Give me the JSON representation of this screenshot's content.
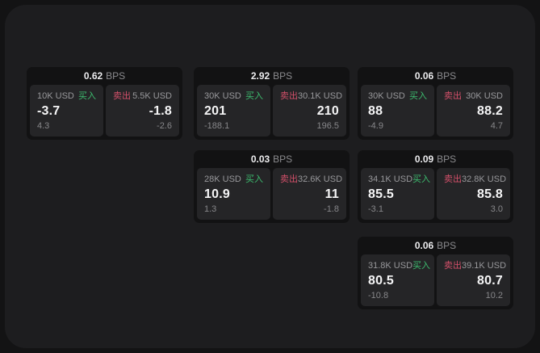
{
  "labels": {
    "bps": "BPS",
    "buy": "买入",
    "sell": "卖出"
  },
  "colors": {
    "buy_accent": "#3dbd6f",
    "sell_accent": "#d4506a",
    "panel_bg": "#1d1d1f",
    "card_bg": "#121213",
    "tile_bg": "#252527"
  },
  "cards": [
    {
      "col": 1,
      "row": 1,
      "bps": "0.62",
      "buy": {
        "amount": "10K USD",
        "value": "-3.7",
        "delta": "4.3"
      },
      "sell": {
        "amount": "5.5K USD",
        "value": "-1.8",
        "delta": "-2.6"
      }
    },
    {
      "col": 2,
      "row": 1,
      "bps": "2.92",
      "buy": {
        "amount": "30K USD",
        "value": "201",
        "delta": "-188.1"
      },
      "sell": {
        "amount": "30.1K USD",
        "value": "210",
        "delta": "196.5"
      }
    },
    {
      "col": 3,
      "row": 1,
      "bps": "0.06",
      "buy": {
        "amount": "30K USD",
        "value": "88",
        "delta": "-4.9"
      },
      "sell": {
        "amount": "30K USD",
        "value": "88.2",
        "delta": "4.7"
      }
    },
    {
      "col": 2,
      "row": 2,
      "bps": "0.03",
      "buy": {
        "amount": "28K USD",
        "value": "10.9",
        "delta": "1.3"
      },
      "sell": {
        "amount": "32.6K USD",
        "value": "11",
        "delta": "-1.8"
      }
    },
    {
      "col": 3,
      "row": 2,
      "bps": "0.09",
      "buy": {
        "amount": "34.1K USD",
        "value": "85.5",
        "delta": "-3.1"
      },
      "sell": {
        "amount": "32.8K USD",
        "value": "85.8",
        "delta": "3.0"
      }
    },
    {
      "col": 3,
      "row": 3,
      "bps": "0.06",
      "buy": {
        "amount": "31.8K USD",
        "value": "80.5",
        "delta": "-10.8"
      },
      "sell": {
        "amount": "39.1K USD",
        "value": "80.7",
        "delta": "10.2"
      }
    }
  ]
}
